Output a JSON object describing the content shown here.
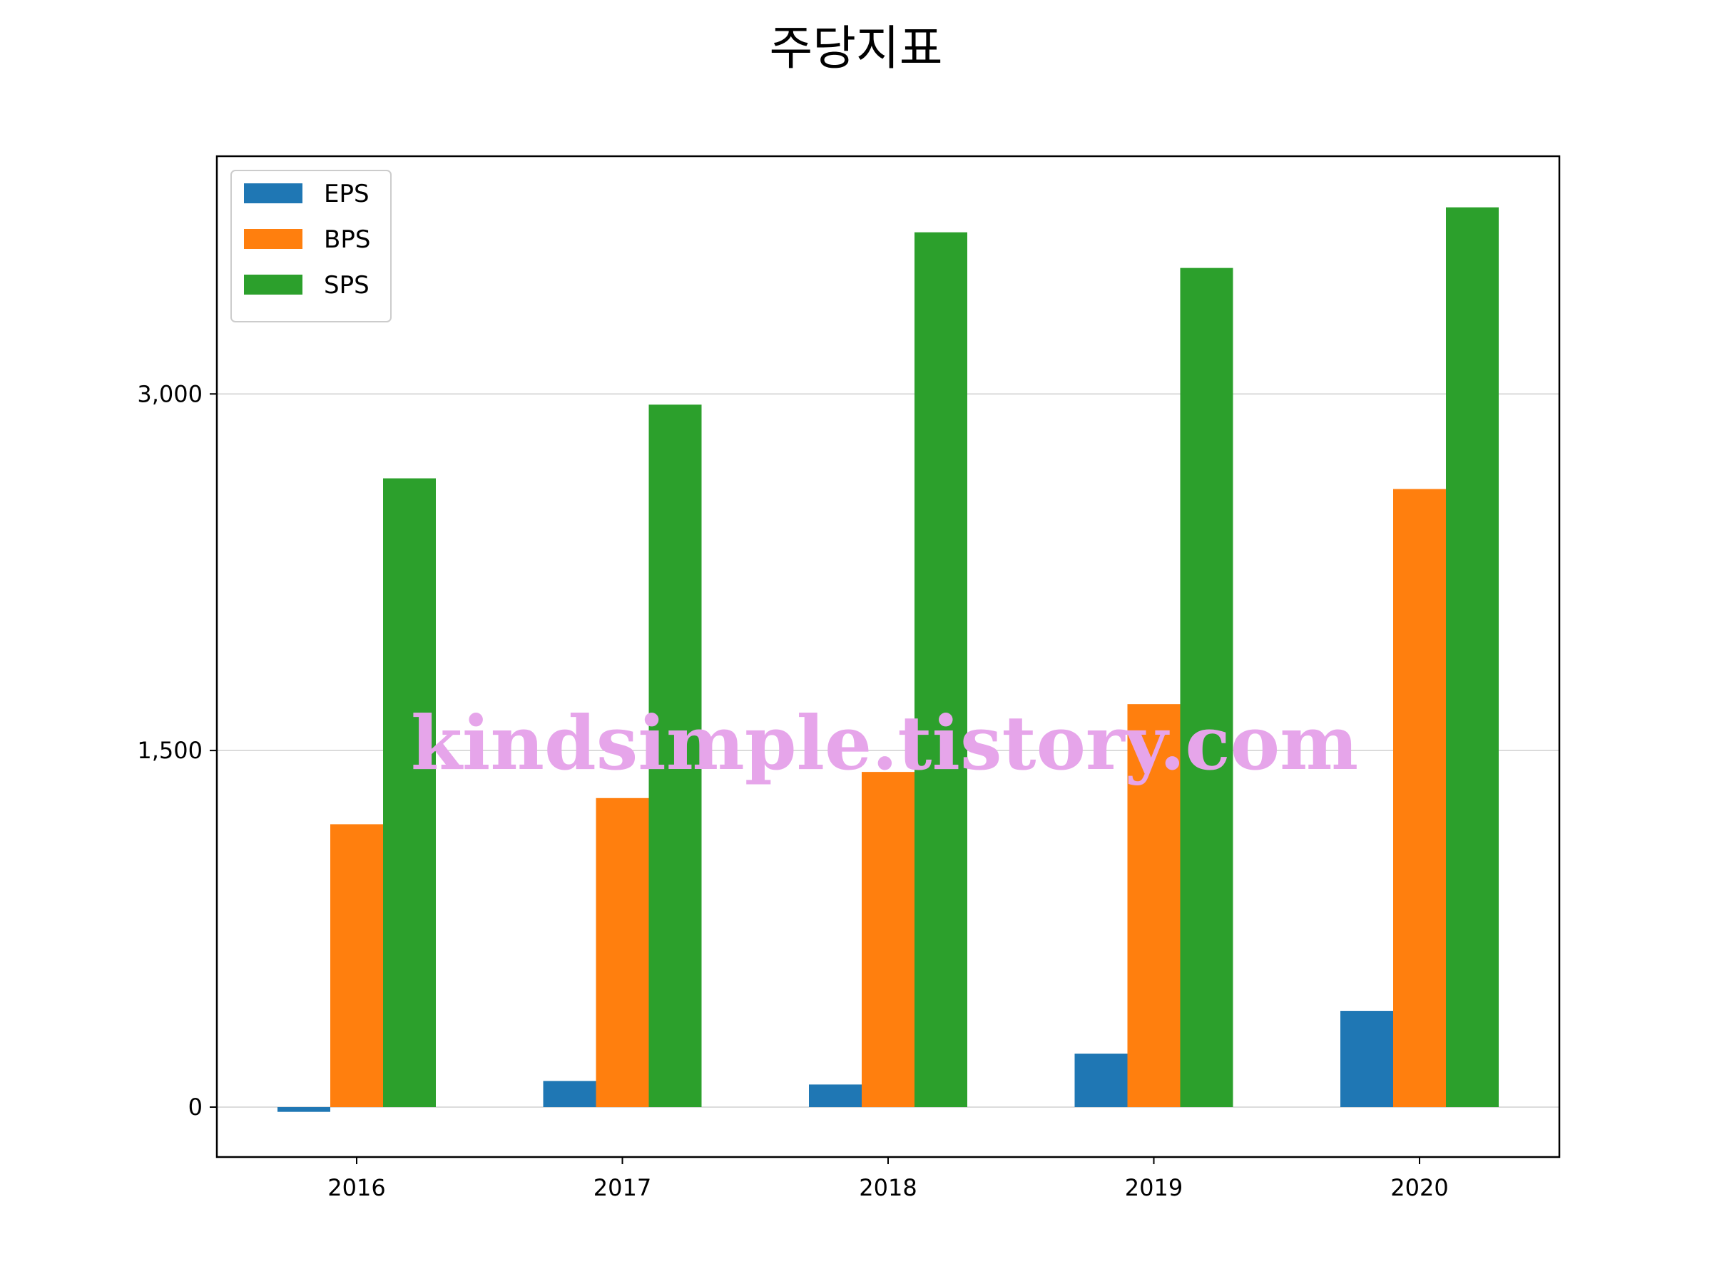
{
  "chart_data": {
    "type": "bar",
    "title": "주당지표",
    "xlabel": "",
    "ylabel": "",
    "categories": [
      "2016",
      "2017",
      "2018",
      "2019",
      "2020"
    ],
    "series": [
      {
        "name": "EPS",
        "color": "#1f77b4",
        "values": [
          -20,
          110,
          95,
          225,
          405
        ]
      },
      {
        "name": "BPS",
        "color": "#ff7f0e",
        "values": [
          1190,
          1300,
          1410,
          1695,
          2600
        ]
      },
      {
        "name": "SPS",
        "color": "#2ca02c",
        "values": [
          2645,
          2955,
          3680,
          3530,
          3785
        ]
      }
    ],
    "ylim": [
      -210,
      4000
    ],
    "yticks": [
      0,
      1500,
      3000
    ],
    "ytick_labels": [
      "0",
      "1,500",
      "3,000"
    ],
    "grid": "horizontal",
    "legend_position": "top-left"
  },
  "watermark": "kindsimple.tistory.com"
}
